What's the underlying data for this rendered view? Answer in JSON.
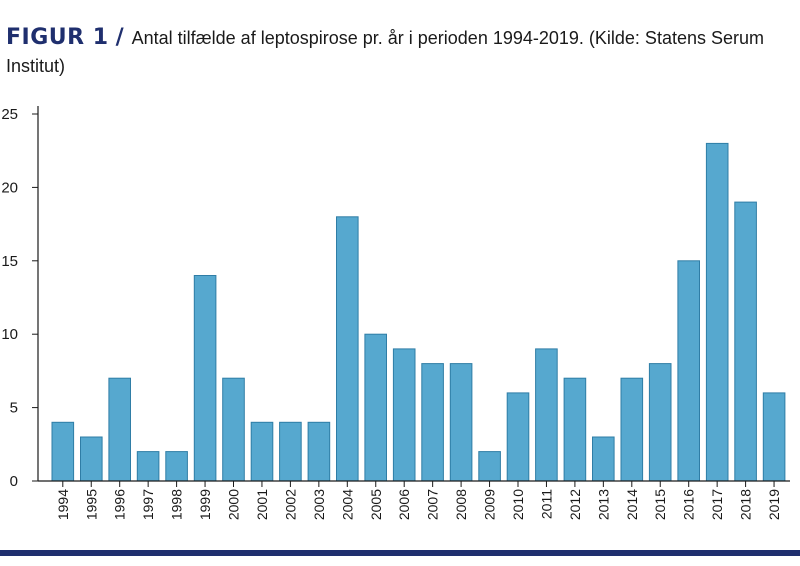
{
  "caption": {
    "label": "FIGUR 1",
    "slash": "/",
    "text": "Antal tilfælde af leptospirose pr. år i perioden 1994-2019. (Kilde: Statens Serum Institut)"
  },
  "colors": {
    "bar": "#56a8cf",
    "bar_edge": "#2f7da6",
    "axis": "#1a1a1a",
    "rule": "#1f2f6e"
  },
  "chart_data": {
    "type": "bar",
    "title": "",
    "xlabel": "",
    "ylabel": "",
    "ylim": [
      0,
      25
    ],
    "yticks": [
      0,
      5,
      10,
      15,
      20,
      25
    ],
    "grid": false,
    "categories": [
      "1994",
      "1995",
      "1996",
      "1997",
      "1998",
      "1999",
      "2000",
      "2001",
      "2002",
      "2003",
      "2004",
      "2005",
      "2006",
      "2007",
      "2008",
      "2009",
      "2010",
      "2011",
      "2012",
      "2013",
      "2014",
      "2015",
      "2016",
      "2017",
      "2018",
      "2019"
    ],
    "values": [
      4,
      3,
      7,
      2,
      2,
      14,
      7,
      4,
      4,
      4,
      18,
      10,
      9,
      8,
      8,
      2,
      6,
      9,
      7,
      3,
      7,
      8,
      15,
      23,
      19,
      6
    ]
  }
}
